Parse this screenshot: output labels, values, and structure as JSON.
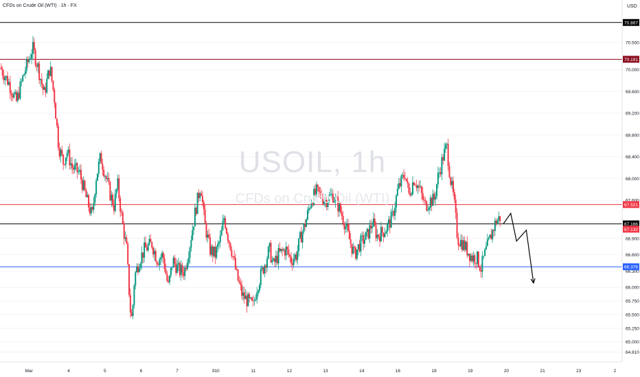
{
  "header": {
    "title": "CFDs on Crude Oil (WTI) · 1h · FX",
    "currency": "USD"
  },
  "watermark": {
    "symbol": "USOIL, 1h",
    "name": "CFDs on Crude Oil (WTI)"
  },
  "chart_data": {
    "type": "candlestick",
    "symbol": "USOIL",
    "timeframe": "1h",
    "ylim": [
      64.63,
      71.28
    ],
    "x_range": [
      0,
      17.2
    ],
    "y_ticks": [
      "64.810",
      "65.000",
      "65.250",
      "65.500",
      "65.750",
      "66.000",
      "66.300",
      "66.600",
      "66.900",
      "67.200",
      "67.600",
      "68.000",
      "68.400",
      "68.800",
      "69.200",
      "69.600",
      "70.000",
      "70.500"
    ],
    "x_ticks": [
      {
        "label": "Mar",
        "x": 0.8
      },
      {
        "label": "4",
        "x": 1.9
      },
      {
        "label": "5",
        "x": 2.9
      },
      {
        "label": "6",
        "x": 3.9
      },
      {
        "label": "7",
        "x": 4.9
      },
      {
        "label": "9",
        "x": 5.9
      },
      {
        "label": "10",
        "x": 6.0
      },
      {
        "label": "11",
        "x": 7.0
      },
      {
        "label": "12",
        "x": 8.0
      },
      {
        "label": "13",
        "x": 9.0
      },
      {
        "label": "14",
        "x": 10.0
      },
      {
        "label": "16",
        "x": 11.0
      },
      {
        "label": "18",
        "x": 12.0
      },
      {
        "label": "19",
        "x": 13.0
      },
      {
        "label": "20",
        "x": 14.0
      },
      {
        "label": "21",
        "x": 15.0
      },
      {
        "label": "23",
        "x": 16.0
      },
      {
        "label": "2",
        "x": 17.0
      }
    ],
    "horizontal_lines": [
      {
        "value": 70.867,
        "label": "70.867",
        "color": "#000000"
      },
      {
        "value": 70.191,
        "label": "70.191",
        "color": "#8b0d1f"
      },
      {
        "value": 67.521,
        "label": "67.521",
        "color": "#f23645"
      },
      {
        "value": 67.166,
        "label": "67.166",
        "color": "#000000"
      },
      {
        "value": 66.378,
        "label": "66.378",
        "color": "#2962ff"
      }
    ],
    "price_badges": [
      {
        "value": 67.132,
        "label": "67.132",
        "color": "#f23645"
      }
    ],
    "projection": {
      "color": "#000000",
      "points": [
        [
          13.92,
          67.17
        ],
        [
          14.12,
          67.36
        ],
        [
          14.28,
          66.85
        ],
        [
          14.55,
          67.05
        ],
        [
          14.75,
          66.08
        ]
      ]
    },
    "close_path": [
      [
        0.0,
        70.05
      ],
      [
        0.25,
        69.75
      ],
      [
        0.45,
        69.4
      ],
      [
        0.65,
        69.9
      ],
      [
        0.9,
        70.4
      ],
      [
        1.05,
        70.05
      ],
      [
        1.22,
        69.55
      ],
      [
        1.38,
        70.05
      ],
      [
        1.5,
        69.5
      ],
      [
        1.62,
        68.6
      ],
      [
        1.75,
        68.3
      ],
      [
        1.85,
        68.5
      ],
      [
        2.0,
        68.2
      ],
      [
        2.2,
        68.1
      ],
      [
        2.4,
        67.6
      ],
      [
        2.55,
        67.3
      ],
      [
        2.65,
        68.0
      ],
      [
        2.78,
        68.4
      ],
      [
        2.9,
        68.1
      ],
      [
        3.05,
        67.7
      ],
      [
        3.15,
        67.5
      ],
      [
        3.25,
        67.9
      ],
      [
        3.38,
        67.2
      ],
      [
        3.5,
        66.7
      ],
      [
        3.6,
        65.6
      ],
      [
        3.65,
        65.4
      ],
      [
        3.72,
        66.2
      ],
      [
        3.85,
        66.5
      ],
      [
        4.0,
        66.7
      ],
      [
        4.2,
        66.8
      ],
      [
        4.35,
        66.5
      ],
      [
        4.5,
        66.6
      ],
      [
        4.65,
        66.0
      ],
      [
        4.78,
        66.5
      ],
      [
        4.95,
        66.3
      ],
      [
        5.1,
        66.3
      ],
      [
        5.25,
        66.8
      ],
      [
        5.4,
        67.4
      ],
      [
        5.55,
        67.9
      ],
      [
        5.65,
        67.2
      ],
      [
        5.8,
        66.7
      ],
      [
        5.95,
        66.6
      ],
      [
        6.1,
        66.9
      ],
      [
        6.2,
        67.3
      ],
      [
        6.28,
        67.0
      ],
      [
        6.4,
        66.7
      ],
      [
        6.55,
        66.2
      ],
      [
        6.7,
        65.85
      ],
      [
        6.85,
        65.75
      ],
      [
        7.0,
        65.65
      ],
      [
        7.1,
        66.0
      ],
      [
        7.25,
        66.3
      ],
      [
        7.45,
        66.7
      ],
      [
        7.55,
        66.4
      ],
      [
        7.7,
        66.6
      ],
      [
        7.9,
        66.7
      ],
      [
        8.05,
        66.5
      ],
      [
        8.2,
        66.6
      ],
      [
        8.3,
        66.9
      ],
      [
        8.45,
        67.2
      ],
      [
        8.6,
        67.6
      ],
      [
        8.75,
        67.75
      ],
      [
        9.0,
        67.6
      ],
      [
        9.2,
        67.7
      ],
      [
        9.35,
        67.5
      ],
      [
        9.5,
        67.25
      ],
      [
        9.65,
        66.9
      ],
      [
        9.8,
        66.6
      ],
      [
        9.95,
        66.8
      ],
      [
        10.15,
        66.95
      ],
      [
        10.3,
        67.2
      ],
      [
        10.42,
        66.95
      ],
      [
        10.55,
        67.0
      ],
      [
        10.7,
        67.1
      ],
      [
        10.85,
        67.3
      ],
      [
        11.0,
        67.8
      ],
      [
        11.2,
        68.1
      ],
      [
        11.3,
        67.7
      ],
      [
        11.45,
        68.0
      ],
      [
        11.6,
        67.8
      ],
      [
        11.75,
        67.5
      ],
      [
        11.9,
        67.6
      ],
      [
        12.0,
        67.6
      ],
      [
        12.1,
        68.0
      ],
      [
        12.25,
        68.4
      ],
      [
        12.35,
        68.6
      ],
      [
        12.45,
        68.0
      ],
      [
        12.55,
        67.6
      ],
      [
        12.65,
        66.9
      ],
      [
        12.8,
        66.8
      ],
      [
        12.9,
        66.7
      ],
      [
        13.05,
        66.55
      ],
      [
        13.18,
        66.55
      ],
      [
        13.3,
        66.35
      ],
      [
        13.4,
        66.6
      ],
      [
        13.55,
        66.9
      ],
      [
        13.7,
        67.2
      ],
      [
        13.85,
        67.3
      ]
    ]
  }
}
